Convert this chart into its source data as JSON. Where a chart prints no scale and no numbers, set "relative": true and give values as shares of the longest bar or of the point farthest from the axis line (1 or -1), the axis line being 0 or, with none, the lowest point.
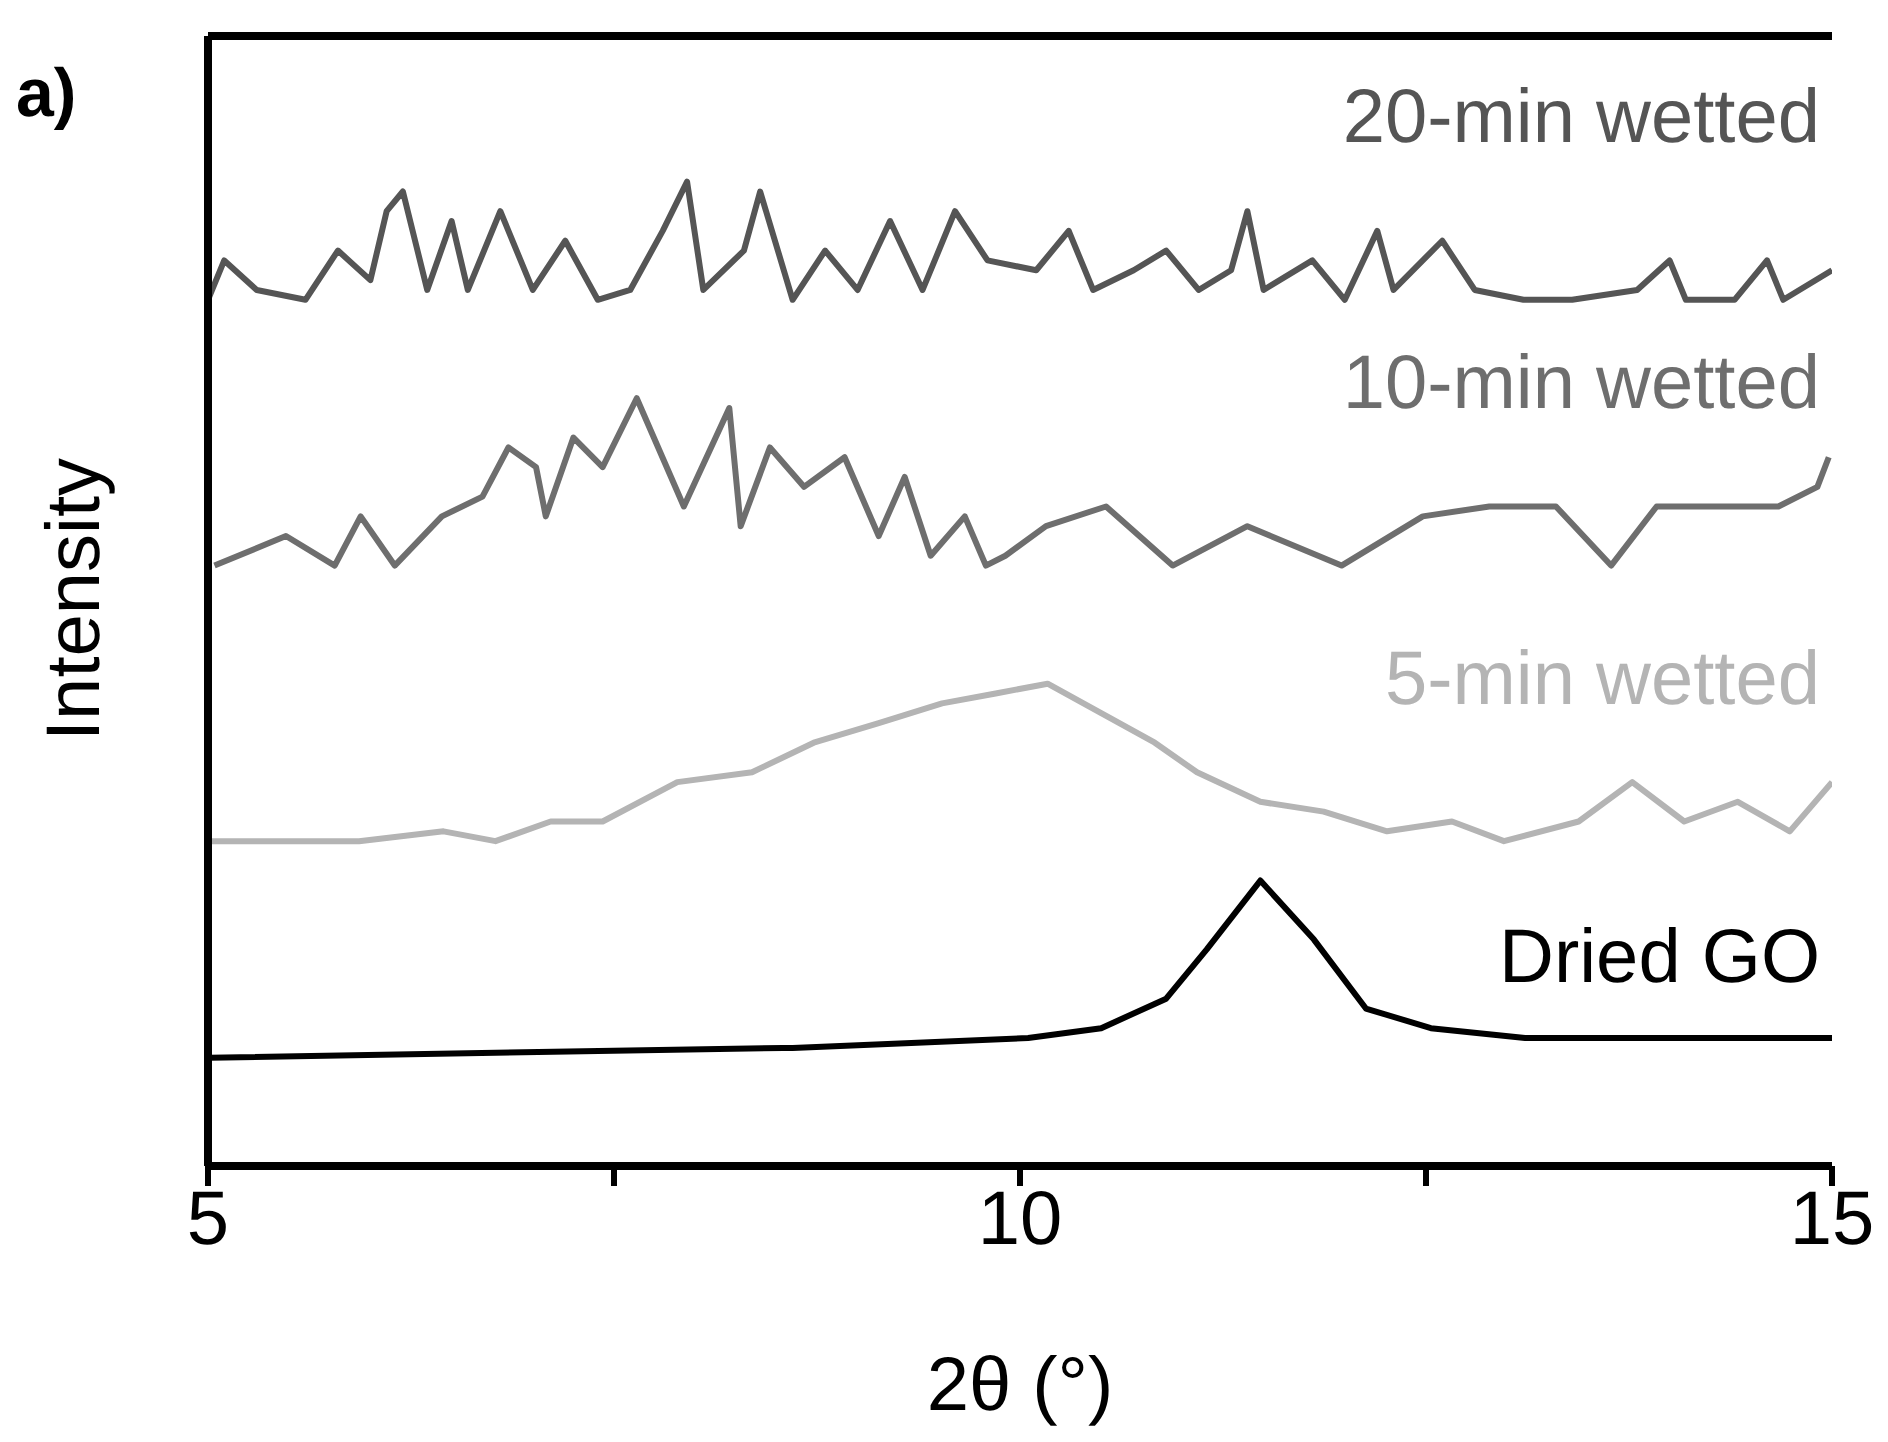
{
  "chart_data": {
    "type": "line",
    "title": "a)",
    "xlabel": "2θ (°)",
    "ylabel": "Intensity",
    "relative": true,
    "xlim": [
      5,
      15
    ],
    "xticks": [
      5,
      {
        "value": 7.5,
        "label": null
      },
      10,
      {
        "value": 12.5,
        "label": null
      },
      15
    ],
    "marker": "none",
    "line_style": "solid",
    "series": [
      {
        "name": "Dried GO",
        "color": "#000000",
        "x": [
          5.01,
          8.54,
          8.6,
          10.05,
          10.5,
          10.9,
          11.15,
          11.48,
          11.81,
          12.13,
          12.53,
          13.11,
          15.0
        ],
        "values": [
          0.11,
          0.12,
          0.12,
          0.13,
          0.14,
          0.17,
          0.22,
          0.29,
          0.23,
          0.16,
          0.14,
          0.13,
          0.13
        ]
      },
      {
        "name": "5-min wetted",
        "color": "#b4b4b4",
        "x": [
          5.01,
          5.93,
          6.45,
          6.77,
          7.11,
          7.43,
          7.89,
          8.35,
          8.73,
          9.13,
          9.52,
          9.85,
          10.17,
          10.5,
          10.83,
          11.09,
          11.48,
          11.87,
          12.26,
          12.66,
          12.98,
          13.44,
          13.77,
          14.09,
          14.42,
          14.74,
          15.0
        ],
        "values": [
          0.33,
          0.33,
          0.34,
          0.33,
          0.35,
          0.35,
          0.39,
          0.4,
          0.43,
          0.45,
          0.47,
          0.48,
          0.49,
          0.46,
          0.43,
          0.4,
          0.37,
          0.36,
          0.34,
          0.35,
          0.33,
          0.35,
          0.39,
          0.35,
          0.37,
          0.34,
          0.39
        ]
      },
      {
        "name": "10-min wetted",
        "color": "#6e6e6e",
        "x": [
          5.04,
          5.48,
          5.78,
          5.94,
          6.15,
          6.44,
          6.69,
          6.85,
          7.02,
          7.08,
          7.25,
          7.43,
          7.64,
          7.93,
          8.21,
          8.28,
          8.46,
          8.67,
          8.92,
          9.13,
          9.29,
          9.45,
          9.66,
          9.79,
          9.91,
          10.16,
          10.53,
          10.94,
          11.4,
          11.98,
          12.48,
          12.89,
          13.3,
          13.64,
          13.92,
          14.38,
          14.67,
          14.91,
          14.98
        ],
        "values": [
          0.61,
          0.64,
          0.61,
          0.66,
          0.61,
          0.66,
          0.68,
          0.73,
          0.71,
          0.66,
          0.74,
          0.71,
          0.78,
          0.67,
          0.77,
          0.65,
          0.73,
          0.69,
          0.72,
          0.64,
          0.7,
          0.62,
          0.66,
          0.61,
          0.62,
          0.65,
          0.67,
          0.61,
          0.65,
          0.61,
          0.66,
          0.67,
          0.67,
          0.61,
          0.67,
          0.67,
          0.67,
          0.69,
          0.72
        ]
      },
      {
        "name": "20-min wetted",
        "color": "#555555",
        "x": [
          5.0,
          5.1,
          5.3,
          5.6,
          5.8,
          6.0,
          6.1,
          6.2,
          6.35,
          6.5,
          6.6,
          6.8,
          7.0,
          7.2,
          7.4,
          7.6,
          7.8,
          7.95,
          8.05,
          8.3,
          8.4,
          8.6,
          8.8,
          9.0,
          9.2,
          9.4,
          9.6,
          9.8,
          10.1,
          10.3,
          10.45,
          10.7,
          10.9,
          11.1,
          11.3,
          11.4,
          11.5,
          11.8,
          12.0,
          12.2,
          12.3,
          12.6,
          12.8,
          13.1,
          13.4,
          13.8,
          14.0,
          14.1,
          14.4,
          14.6,
          14.7,
          15.0
        ],
        "values": [
          0.88,
          0.92,
          0.89,
          0.88,
          0.93,
          0.9,
          0.97,
          0.99,
          0.89,
          0.96,
          0.89,
          0.97,
          0.89,
          0.94,
          0.88,
          0.89,
          0.95,
          1.0,
          0.89,
          0.93,
          0.99,
          0.88,
          0.93,
          0.89,
          0.96,
          0.89,
          0.97,
          0.92,
          0.91,
          0.95,
          0.89,
          0.91,
          0.93,
          0.89,
          0.91,
          0.97,
          0.89,
          0.92,
          0.88,
          0.95,
          0.89,
          0.94,
          0.89,
          0.88,
          0.88,
          0.89,
          0.92,
          0.88,
          0.88,
          0.92,
          0.88,
          0.91
        ]
      }
    ]
  }
}
